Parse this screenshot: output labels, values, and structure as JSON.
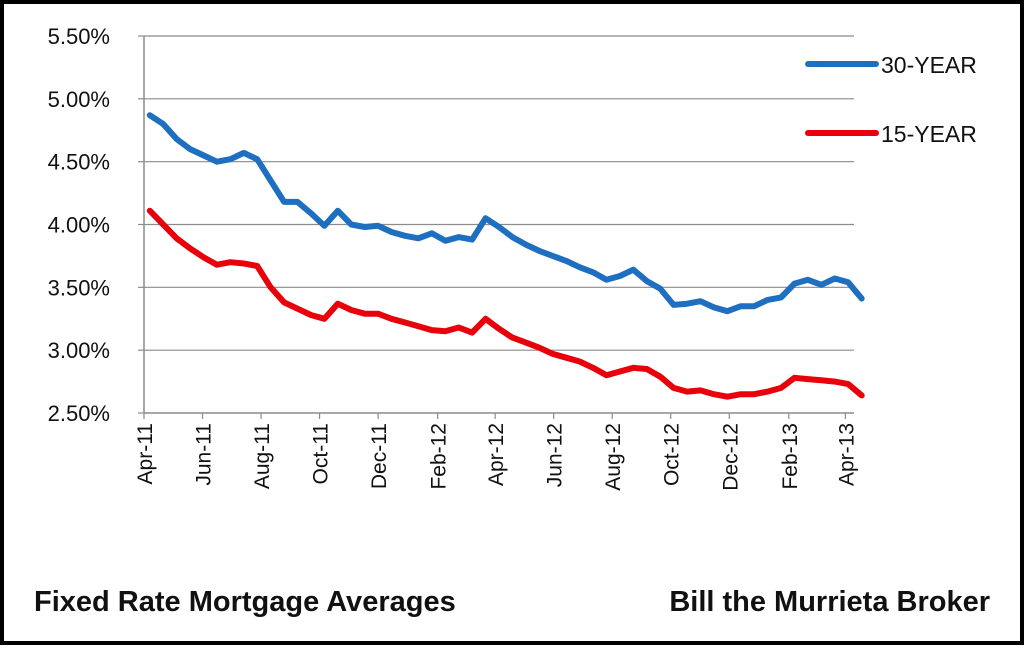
{
  "chart_data": {
    "type": "line",
    "ylim": [
      0.025,
      0.055
    ],
    "yticks": [
      "5.50%",
      "5.00%",
      "4.50%",
      "4.00%",
      "3.50%",
      "3.00%",
      "2.50%"
    ],
    "xticks": [
      "Apr-11",
      "Jun-11",
      "Aug-11",
      "Oct-11",
      "Dec-11",
      "Feb-12",
      "Apr-12",
      "Jun-12",
      "Aug-12",
      "Oct-12",
      "Dec-12",
      "Feb-13",
      "Apr-13"
    ],
    "x": [
      "2011-04-07",
      "2011-04-21",
      "2011-05-05",
      "2011-05-19",
      "2011-06-02",
      "2011-06-16",
      "2011-06-30",
      "2011-07-14",
      "2011-07-28",
      "2011-08-11",
      "2011-08-25",
      "2011-09-08",
      "2011-09-22",
      "2011-10-06",
      "2011-10-20",
      "2011-11-03",
      "2011-11-17",
      "2011-12-01",
      "2011-12-15",
      "2011-12-29",
      "2012-01-12",
      "2012-01-26",
      "2012-02-09",
      "2012-02-23",
      "2012-03-08",
      "2012-03-22",
      "2012-04-05",
      "2012-04-19",
      "2012-05-03",
      "2012-05-17",
      "2012-05-31",
      "2012-06-14",
      "2012-06-28",
      "2012-07-12",
      "2012-07-26",
      "2012-08-09",
      "2012-08-23",
      "2012-09-06",
      "2012-09-20",
      "2012-10-04",
      "2012-10-18",
      "2012-11-01",
      "2012-11-15",
      "2012-11-29",
      "2012-12-13",
      "2012-12-27",
      "2013-01-10",
      "2013-01-24",
      "2013-02-07",
      "2013-02-21",
      "2013-03-07",
      "2013-03-21",
      "2013-04-04",
      "2013-04-18"
    ],
    "series": [
      {
        "name": "30-YEAR",
        "color": "#1f6fc1",
        "values": [
          0.0487,
          0.048,
          0.0468,
          0.046,
          0.0455,
          0.045,
          0.0452,
          0.0457,
          0.0452,
          0.0435,
          0.0418,
          0.0418,
          0.0409,
          0.0399,
          0.0411,
          0.04,
          0.0398,
          0.0399,
          0.0394,
          0.0391,
          0.0389,
          0.0393,
          0.0387,
          0.039,
          0.0388,
          0.0405,
          0.0398,
          0.039,
          0.0384,
          0.0379,
          0.0375,
          0.0371,
          0.0366,
          0.0362,
          0.0356,
          0.0359,
          0.0364,
          0.0355,
          0.0349,
          0.0336,
          0.0337,
          0.0339,
          0.0334,
          0.0331,
          0.0335,
          0.0335,
          0.034,
          0.0342,
          0.0353,
          0.0356,
          0.0352,
          0.0357,
          0.0354,
          0.0341
        ]
      },
      {
        "name": "15-YEAR",
        "color": "#e8000b",
        "values": [
          0.0411,
          0.04,
          0.0389,
          0.0381,
          0.0374,
          0.0368,
          0.037,
          0.0369,
          0.0367,
          0.035,
          0.0338,
          0.0333,
          0.0328,
          0.0325,
          0.0337,
          0.0332,
          0.0329,
          0.0329,
          0.0325,
          0.0322,
          0.0319,
          0.0316,
          0.0315,
          0.0318,
          0.0314,
          0.0325,
          0.0317,
          0.031,
          0.0306,
          0.0302,
          0.0297,
          0.0294,
          0.0291,
          0.0286,
          0.028,
          0.0283,
          0.0286,
          0.0285,
          0.0279,
          0.027,
          0.0267,
          0.0268,
          0.0265,
          0.0263,
          0.0265,
          0.0265,
          0.0267,
          0.027,
          0.0278,
          0.0277,
          0.0276,
          0.0275,
          0.0273,
          0.0264
        ]
      }
    ],
    "grid": true,
    "legend": "top-right"
  },
  "footer": {
    "left": "Fixed Rate Mortgage Averages",
    "right": "Bill the Murrieta Broker"
  }
}
